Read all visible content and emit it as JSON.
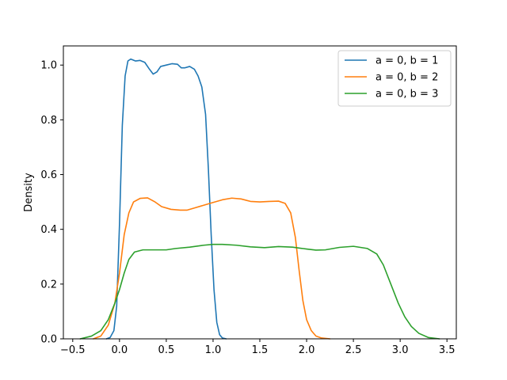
{
  "chart_data": {
    "type": "line",
    "title": "",
    "xlabel": "",
    "ylabel": "Density",
    "xlim": [
      -0.6,
      3.6
    ],
    "ylim": [
      0,
      1.07
    ],
    "xticks": [
      -0.5,
      0.0,
      0.5,
      1.0,
      1.5,
      2.0,
      2.5,
      3.0,
      3.5
    ],
    "xtick_labels": [
      "−0.5",
      "0.0",
      "0.5",
      "1.0",
      "1.5",
      "2.0",
      "2.5",
      "3.0",
      "3.5"
    ],
    "yticks": [
      0.0,
      0.2,
      0.4,
      0.6,
      0.8,
      1.0
    ],
    "ytick_labels": [
      "0.0",
      "0.2",
      "0.4",
      "0.6",
      "0.8",
      "1.0"
    ],
    "grid": false,
    "legend_position": "top-right",
    "series": [
      {
        "name": "a = 0, b = 1",
        "color": "#1f77b4",
        "points": [
          [
            -0.14,
            0.0
          ],
          [
            -0.1,
            0.005
          ],
          [
            -0.06,
            0.03
          ],
          [
            -0.03,
            0.12
          ],
          [
            0.0,
            0.42
          ],
          [
            0.03,
            0.78
          ],
          [
            0.06,
            0.96
          ],
          [
            0.09,
            1.015
          ],
          [
            0.12,
            1.022
          ],
          [
            0.17,
            1.015
          ],
          [
            0.22,
            1.017
          ],
          [
            0.27,
            1.01
          ],
          [
            0.32,
            0.985
          ],
          [
            0.36,
            0.967
          ],
          [
            0.4,
            0.975
          ],
          [
            0.44,
            0.995
          ],
          [
            0.5,
            1.0
          ],
          [
            0.56,
            1.005
          ],
          [
            0.62,
            1.003
          ],
          [
            0.66,
            0.99
          ],
          [
            0.7,
            0.99
          ],
          [
            0.75,
            0.995
          ],
          [
            0.8,
            0.985
          ],
          [
            0.84,
            0.96
          ],
          [
            0.88,
            0.92
          ],
          [
            0.92,
            0.82
          ],
          [
            0.95,
            0.62
          ],
          [
            0.98,
            0.38
          ],
          [
            1.01,
            0.18
          ],
          [
            1.04,
            0.06
          ],
          [
            1.07,
            0.015
          ],
          [
            1.1,
            0.003
          ],
          [
            1.14,
            0.0
          ]
        ]
      },
      {
        "name": "a = 0, b = 2",
        "color": "#ff7f0e",
        "points": [
          [
            -0.28,
            0.0
          ],
          [
            -0.2,
            0.01
          ],
          [
            -0.12,
            0.05
          ],
          [
            -0.05,
            0.13
          ],
          [
            0.0,
            0.24
          ],
          [
            0.05,
            0.38
          ],
          [
            0.1,
            0.46
          ],
          [
            0.15,
            0.5
          ],
          [
            0.22,
            0.513
          ],
          [
            0.3,
            0.515
          ],
          [
            0.38,
            0.5
          ],
          [
            0.45,
            0.483
          ],
          [
            0.55,
            0.473
          ],
          [
            0.65,
            0.47
          ],
          [
            0.72,
            0.47
          ],
          [
            0.8,
            0.478
          ],
          [
            0.9,
            0.488
          ],
          [
            1.0,
            0.498
          ],
          [
            1.1,
            0.508
          ],
          [
            1.2,
            0.514
          ],
          [
            1.3,
            0.511
          ],
          [
            1.4,
            0.502
          ],
          [
            1.5,
            0.5
          ],
          [
            1.6,
            0.502
          ],
          [
            1.7,
            0.503
          ],
          [
            1.77,
            0.495
          ],
          [
            1.83,
            0.46
          ],
          [
            1.88,
            0.37
          ],
          [
            1.92,
            0.25
          ],
          [
            1.96,
            0.14
          ],
          [
            2.0,
            0.07
          ],
          [
            2.05,
            0.03
          ],
          [
            2.1,
            0.01
          ],
          [
            2.16,
            0.003
          ],
          [
            2.25,
            0.0
          ]
        ]
      },
      {
        "name": "a = 0, b = 3",
        "color": "#2ca02c",
        "points": [
          [
            -0.42,
            0.0
          ],
          [
            -0.3,
            0.01
          ],
          [
            -0.2,
            0.03
          ],
          [
            -0.12,
            0.07
          ],
          [
            -0.05,
            0.13
          ],
          [
            0.0,
            0.18
          ],
          [
            0.05,
            0.24
          ],
          [
            0.1,
            0.29
          ],
          [
            0.16,
            0.317
          ],
          [
            0.25,
            0.325
          ],
          [
            0.35,
            0.325
          ],
          [
            0.5,
            0.325
          ],
          [
            0.6,
            0.33
          ],
          [
            0.75,
            0.335
          ],
          [
            0.9,
            0.342
          ],
          [
            1.0,
            0.345
          ],
          [
            1.1,
            0.345
          ],
          [
            1.25,
            0.342
          ],
          [
            1.4,
            0.336
          ],
          [
            1.55,
            0.333
          ],
          [
            1.7,
            0.337
          ],
          [
            1.85,
            0.335
          ],
          [
            2.0,
            0.328
          ],
          [
            2.1,
            0.324
          ],
          [
            2.2,
            0.325
          ],
          [
            2.35,
            0.334
          ],
          [
            2.5,
            0.338
          ],
          [
            2.65,
            0.33
          ],
          [
            2.75,
            0.31
          ],
          [
            2.82,
            0.27
          ],
          [
            2.9,
            0.2
          ],
          [
            2.98,
            0.13
          ],
          [
            3.05,
            0.08
          ],
          [
            3.12,
            0.045
          ],
          [
            3.2,
            0.02
          ],
          [
            3.3,
            0.005
          ],
          [
            3.42,
            0.0
          ]
        ]
      }
    ]
  }
}
